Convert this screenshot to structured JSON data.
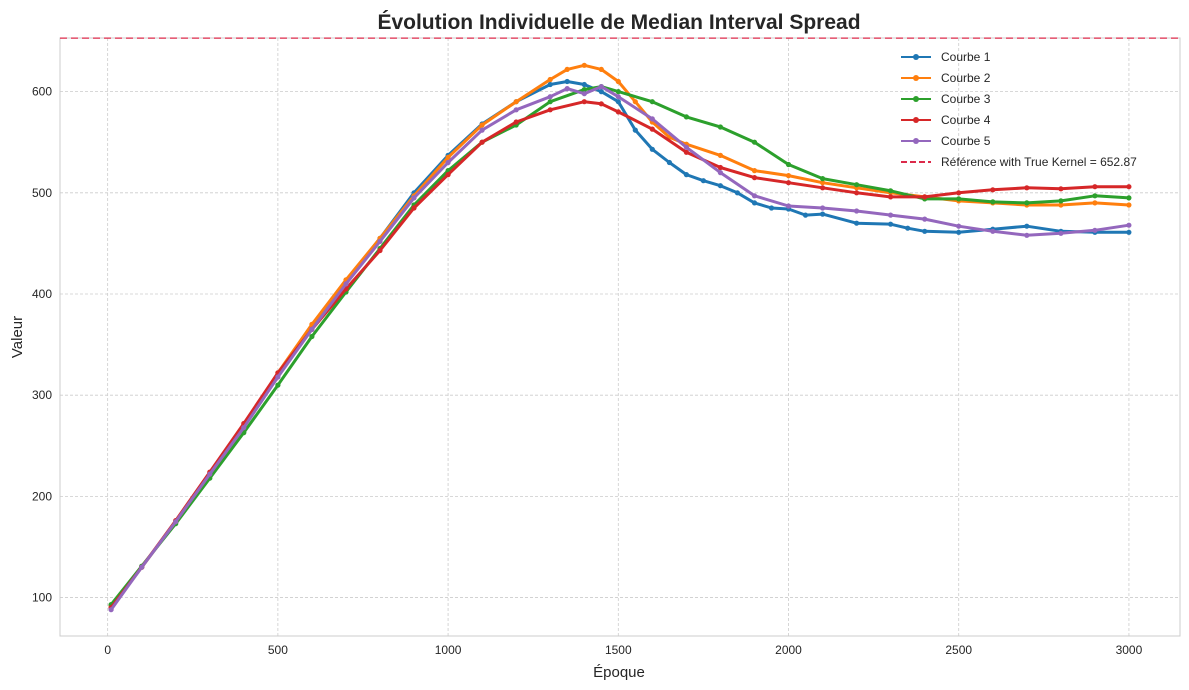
{
  "chart_data": {
    "type": "line",
    "title": "Évolution Individuelle de Median Interval Spread",
    "xlabel": "Époque",
    "ylabel": "Valeur",
    "xlim": [
      -140,
      3150
    ],
    "ylim": [
      62,
      653
    ],
    "x_ticks": [
      0,
      500,
      1000,
      1500,
      2000,
      2500,
      3000
    ],
    "y_ticks": [
      100,
      200,
      300,
      400,
      500,
      600
    ],
    "x_tick_labels": [
      "0",
      "500",
      "1000",
      "1500",
      "2000",
      "2500",
      "3000"
    ],
    "y_tick_labels": [
      "100",
      "200",
      "300",
      "400",
      "500",
      "600"
    ],
    "grid": true,
    "legend_position": "top-right",
    "series": [
      {
        "name": "Courbe 1",
        "color": "#1f77b4",
        "points": [
          [
            10,
            90
          ],
          [
            100,
            130
          ],
          [
            200,
            175
          ],
          [
            300,
            222
          ],
          [
            400,
            270
          ],
          [
            500,
            320
          ],
          [
            600,
            368
          ],
          [
            700,
            412
          ],
          [
            800,
            455
          ],
          [
            900,
            500
          ],
          [
            1000,
            537
          ],
          [
            1100,
            568
          ],
          [
            1200,
            590
          ],
          [
            1300,
            607
          ],
          [
            1350,
            610
          ],
          [
            1400,
            607
          ],
          [
            1450,
            600
          ],
          [
            1500,
            590
          ],
          [
            1550,
            562
          ],
          [
            1600,
            543
          ],
          [
            1650,
            530
          ],
          [
            1700,
            518
          ],
          [
            1750,
            512
          ],
          [
            1800,
            507
          ],
          [
            1850,
            500
          ],
          [
            1900,
            490
          ],
          [
            1950,
            485
          ],
          [
            2000,
            484
          ],
          [
            2050,
            478
          ],
          [
            2100,
            479
          ],
          [
            2200,
            470
          ],
          [
            2300,
            469
          ],
          [
            2350,
            465
          ],
          [
            2400,
            462
          ],
          [
            2500,
            461
          ],
          [
            2600,
            464
          ],
          [
            2700,
            467
          ],
          [
            2800,
            462
          ],
          [
            2900,
            461
          ],
          [
            3000,
            461
          ]
        ]
      },
      {
        "name": "Courbe 2",
        "color": "#ff7f0e",
        "points": [
          [
            10,
            92
          ],
          [
            100,
            130
          ],
          [
            200,
            175
          ],
          [
            300,
            223
          ],
          [
            400,
            270
          ],
          [
            500,
            322
          ],
          [
            600,
            370
          ],
          [
            700,
            414
          ],
          [
            800,
            455
          ],
          [
            900,
            497
          ],
          [
            1000,
            535
          ],
          [
            1100,
            567
          ],
          [
            1200,
            590
          ],
          [
            1300,
            612
          ],
          [
            1350,
            622
          ],
          [
            1400,
            626
          ],
          [
            1450,
            622
          ],
          [
            1500,
            610
          ],
          [
            1550,
            590
          ],
          [
            1600,
            570
          ],
          [
            1650,
            555
          ],
          [
            1700,
            548
          ],
          [
            1800,
            537
          ],
          [
            1900,
            522
          ],
          [
            2000,
            517
          ],
          [
            2100,
            510
          ],
          [
            2200,
            505
          ],
          [
            2300,
            500
          ],
          [
            2400,
            496
          ],
          [
            2500,
            492
          ],
          [
            2600,
            490
          ],
          [
            2700,
            488
          ],
          [
            2800,
            488
          ],
          [
            2900,
            490
          ],
          [
            3000,
            488
          ]
        ]
      },
      {
        "name": "Courbe 3",
        "color": "#2ca02c",
        "points": [
          [
            10,
            93
          ],
          [
            100,
            131
          ],
          [
            200,
            173
          ],
          [
            300,
            218
          ],
          [
            400,
            263
          ],
          [
            500,
            310
          ],
          [
            600,
            358
          ],
          [
            700,
            402
          ],
          [
            800,
            445
          ],
          [
            900,
            488
          ],
          [
            1000,
            522
          ],
          [
            1100,
            550
          ],
          [
            1200,
            567
          ],
          [
            1300,
            590
          ],
          [
            1400,
            602
          ],
          [
            1450,
            605
          ],
          [
            1500,
            600
          ],
          [
            1600,
            590
          ],
          [
            1700,
            575
          ],
          [
            1800,
            565
          ],
          [
            1900,
            550
          ],
          [
            2000,
            528
          ],
          [
            2100,
            514
          ],
          [
            2200,
            508
          ],
          [
            2300,
            502
          ],
          [
            2400,
            494
          ],
          [
            2500,
            494
          ],
          [
            2600,
            491
          ],
          [
            2700,
            490
          ],
          [
            2800,
            492
          ],
          [
            2900,
            497
          ],
          [
            3000,
            495
          ]
        ]
      },
      {
        "name": "Courbe 4",
        "color": "#d62728",
        "points": [
          [
            10,
            90
          ],
          [
            100,
            130
          ],
          [
            200,
            176
          ],
          [
            300,
            224
          ],
          [
            400,
            272
          ],
          [
            500,
            322
          ],
          [
            600,
            365
          ],
          [
            700,
            405
          ],
          [
            800,
            443
          ],
          [
            900,
            485
          ],
          [
            1000,
            518
          ],
          [
            1100,
            550
          ],
          [
            1200,
            570
          ],
          [
            1300,
            582
          ],
          [
            1400,
            590
          ],
          [
            1450,
            588
          ],
          [
            1500,
            580
          ],
          [
            1600,
            563
          ],
          [
            1700,
            540
          ],
          [
            1800,
            525
          ],
          [
            1900,
            515
          ],
          [
            2000,
            510
          ],
          [
            2100,
            505
          ],
          [
            2200,
            500
          ],
          [
            2300,
            496
          ],
          [
            2400,
            496
          ],
          [
            2500,
            500
          ],
          [
            2600,
            503
          ],
          [
            2700,
            505
          ],
          [
            2800,
            504
          ],
          [
            2900,
            506
          ],
          [
            3000,
            506
          ]
        ]
      },
      {
        "name": "Courbe 5",
        "color": "#9467bd",
        "points": [
          [
            10,
            88
          ],
          [
            100,
            130
          ],
          [
            200,
            175
          ],
          [
            300,
            222
          ],
          [
            400,
            268
          ],
          [
            500,
            318
          ],
          [
            600,
            365
          ],
          [
            700,
            410
          ],
          [
            800,
            452
          ],
          [
            900,
            495
          ],
          [
            1000,
            530
          ],
          [
            1100,
            562
          ],
          [
            1200,
            582
          ],
          [
            1300,
            595
          ],
          [
            1350,
            603
          ],
          [
            1400,
            598
          ],
          [
            1450,
            605
          ],
          [
            1500,
            595
          ],
          [
            1600,
            573
          ],
          [
            1700,
            545
          ],
          [
            1800,
            520
          ],
          [
            1900,
            497
          ],
          [
            2000,
            487
          ],
          [
            2100,
            485
          ],
          [
            2200,
            482
          ],
          [
            2300,
            478
          ],
          [
            2400,
            474
          ],
          [
            2500,
            467
          ],
          [
            2600,
            462
          ],
          [
            2700,
            458
          ],
          [
            2800,
            460
          ],
          [
            2900,
            463
          ],
          [
            3000,
            468
          ]
        ]
      }
    ],
    "reference": {
      "name": "Référence with True Kernel = 652.87",
      "value": 652.87,
      "color": "#dc2a4a",
      "style": "dashed"
    }
  }
}
